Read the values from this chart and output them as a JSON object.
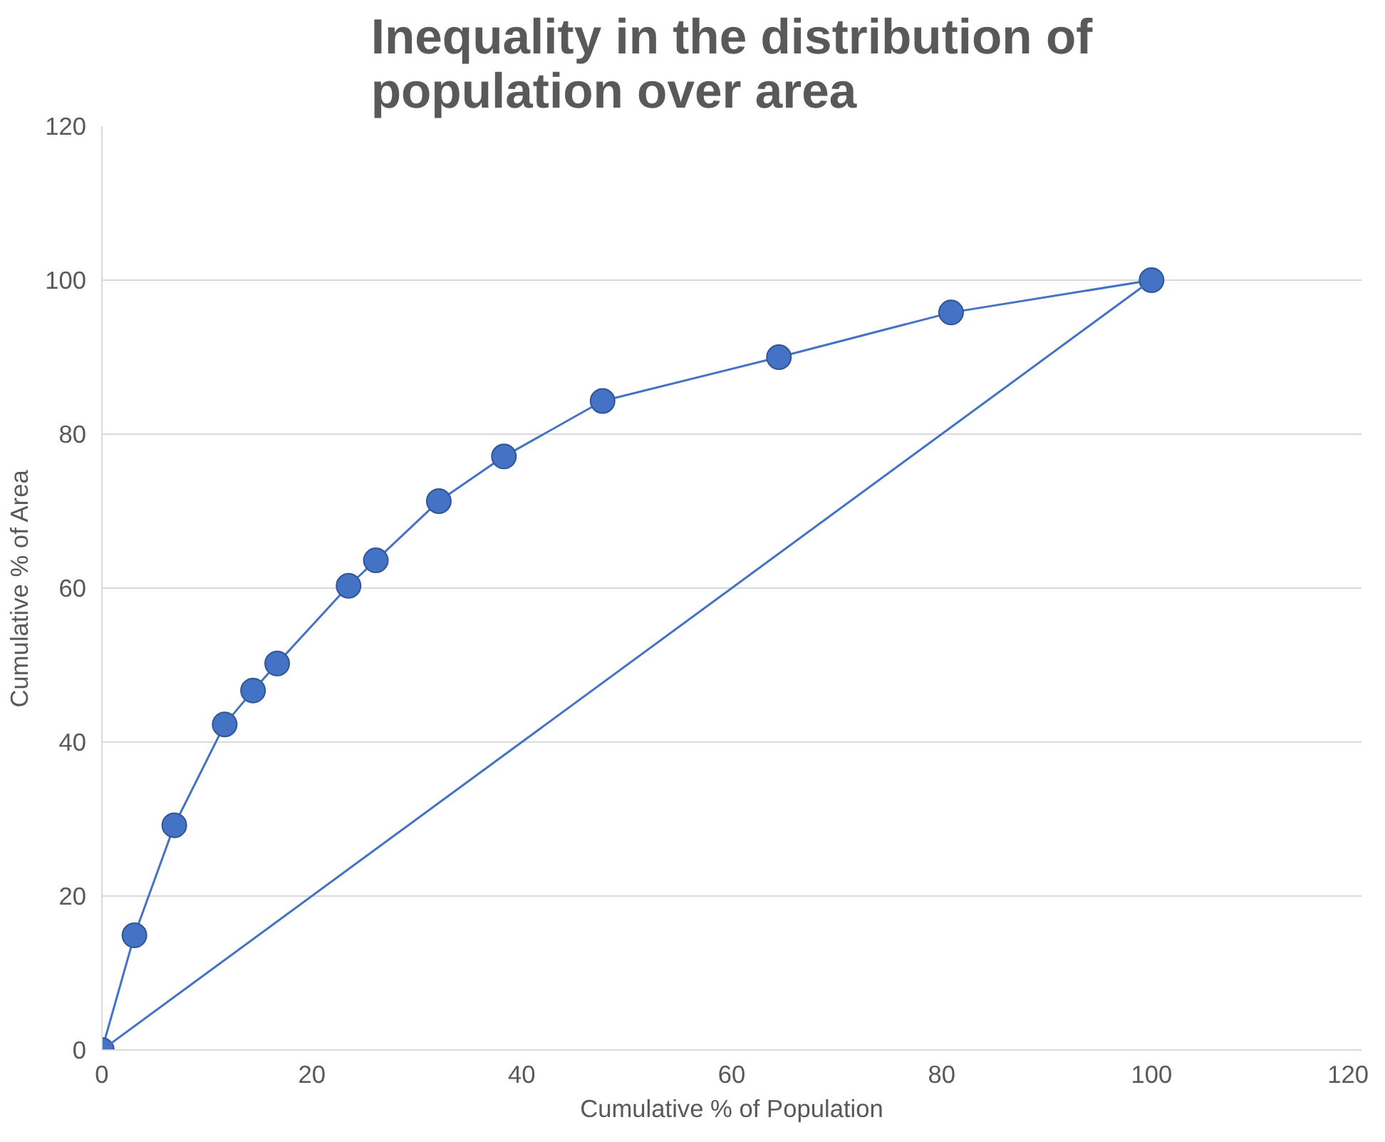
{
  "chart_data": {
    "type": "line",
    "title": "Inequality in the distribution of population over area",
    "xlabel": "Cumulative % of Population",
    "ylabel": "Cumulative % of Area",
    "xlim": [
      0,
      120
    ],
    "ylim": [
      0,
      120
    ],
    "xticks": [
      0,
      20,
      40,
      60,
      80,
      100,
      120
    ],
    "yticks": [
      0,
      20,
      40,
      60,
      80,
      100,
      120
    ],
    "grid": "y",
    "marker": "circle",
    "line_style": "solid",
    "series": [
      {
        "color": "#4472c4",
        "x": [
          0,
          3.1,
          6.9,
          11.7,
          14.4,
          16.7,
          23.5,
          26.1,
          32.1,
          38.3,
          47.7,
          64.5,
          80.9,
          100
        ],
        "values": [
          0,
          14.9,
          29.2,
          42.3,
          46.7,
          50.2,
          60.3,
          63.6,
          71.3,
          77.1,
          84.3,
          90.0,
          95.8,
          100
        ]
      },
      {
        "color": "#4472c4",
        "marker": "none",
        "x": [
          0,
          100
        ],
        "values": [
          0,
          100
        ]
      }
    ]
  }
}
